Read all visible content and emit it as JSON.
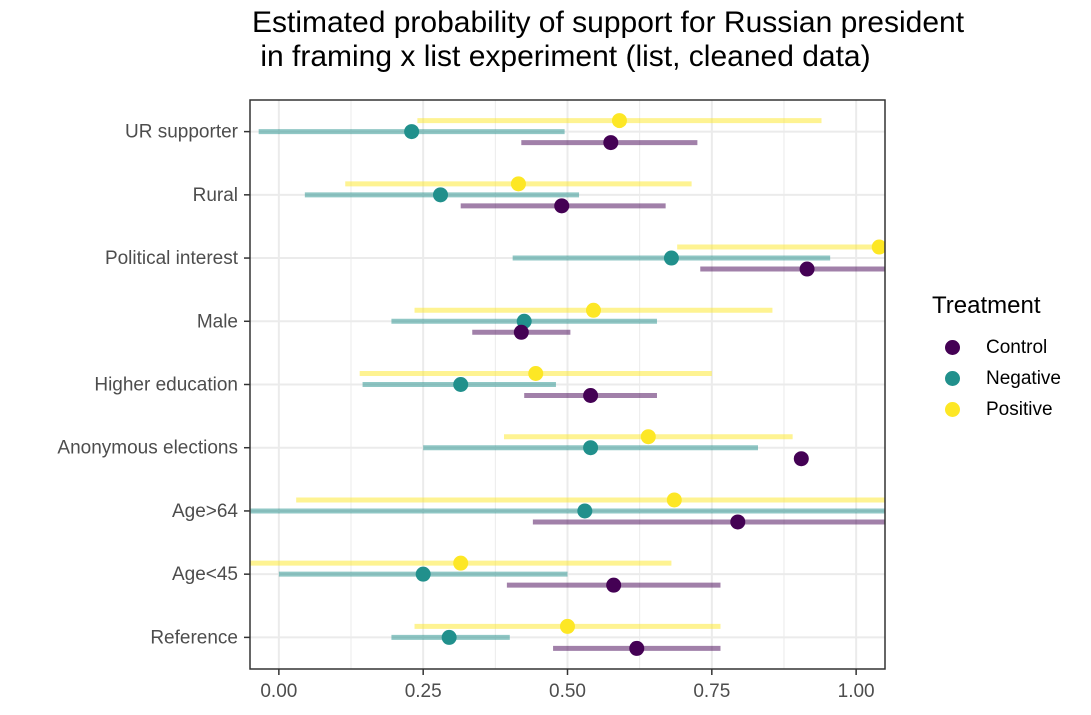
{
  "chart_data": {
    "type": "scatter",
    "title": "Estimated probability of support for Russian president\n in framing x list experiment (list, cleaned data)",
    "xlabel": "",
    "ylabel": "",
    "xlim": [
      -0.05,
      1.05
    ],
    "grid": true,
    "x_ticks": [
      "0.00",
      "0.25",
      "0.50",
      "0.75",
      "1.00"
    ],
    "x_tick_values": [
      0,
      0.25,
      0.5,
      0.75,
      1.0
    ],
    "categories": [
      "UR supporter",
      "Rural",
      "Political interest",
      "Male",
      "Higher education",
      "Anonymous elections",
      "Age>64",
      "Age<45",
      "Reference"
    ],
    "legend": {
      "title": "Treatment",
      "position": "right"
    },
    "series": [
      {
        "name": "Control",
        "color": "#440154",
        "points": [
          {
            "category": "UR supporter",
            "estimate": 0.575,
            "lower": 0.42,
            "upper": 0.725
          },
          {
            "category": "Rural",
            "estimate": 0.49,
            "lower": 0.315,
            "upper": 0.67
          },
          {
            "category": "Political interest",
            "estimate": 0.915,
            "lower": 0.73,
            "upper": 1.05
          },
          {
            "category": "Male",
            "estimate": 0.42,
            "lower": 0.335,
            "upper": 0.505
          },
          {
            "category": "Higher education",
            "estimate": 0.54,
            "lower": 0.425,
            "upper": 0.655
          },
          {
            "category": "Anonymous elections",
            "estimate": 0.905,
            "lower": null,
            "upper": null
          },
          {
            "category": "Age>64",
            "estimate": 0.795,
            "lower": 0.44,
            "upper": 1.05
          },
          {
            "category": "Age<45",
            "estimate": 0.58,
            "lower": 0.395,
            "upper": 0.765
          },
          {
            "category": "Reference",
            "estimate": 0.62,
            "lower": 0.475,
            "upper": 0.765
          }
        ]
      },
      {
        "name": "Negative",
        "color": "#21908C",
        "points": [
          {
            "category": "UR supporter",
            "estimate": 0.23,
            "lower": -0.035,
            "upper": 0.495
          },
          {
            "category": "Rural",
            "estimate": 0.28,
            "lower": 0.045,
            "upper": 0.52
          },
          {
            "category": "Political interest",
            "estimate": 0.68,
            "lower": 0.405,
            "upper": 0.955
          },
          {
            "category": "Male",
            "estimate": 0.425,
            "lower": 0.195,
            "upper": 0.655
          },
          {
            "category": "Higher education",
            "estimate": 0.315,
            "lower": 0.145,
            "upper": 0.48
          },
          {
            "category": "Anonymous elections",
            "estimate": 0.54,
            "lower": 0.25,
            "upper": 0.83
          },
          {
            "category": "Age>64",
            "estimate": 0.53,
            "lower": -0.05,
            "upper": 1.05
          },
          {
            "category": "Age<45",
            "estimate": 0.25,
            "lower": 0.0,
            "upper": 0.5
          },
          {
            "category": "Reference",
            "estimate": 0.295,
            "lower": 0.195,
            "upper": 0.4
          }
        ]
      },
      {
        "name": "Positive",
        "color": "#FDE725",
        "points": [
          {
            "category": "UR supporter",
            "estimate": 0.59,
            "lower": 0.24,
            "upper": 0.94
          },
          {
            "category": "Rural",
            "estimate": 0.415,
            "lower": 0.115,
            "upper": 0.715
          },
          {
            "category": "Political interest",
            "estimate": 1.04,
            "lower": 0.69,
            "upper": 1.05
          },
          {
            "category": "Male",
            "estimate": 0.545,
            "lower": 0.235,
            "upper": 0.855
          },
          {
            "category": "Higher education",
            "estimate": 0.445,
            "lower": 0.14,
            "upper": 0.75
          },
          {
            "category": "Anonymous elections",
            "estimate": 0.64,
            "lower": 0.39,
            "upper": 0.89
          },
          {
            "category": "Age>64",
            "estimate": 0.685,
            "lower": 0.03,
            "upper": 1.05
          },
          {
            "category": "Age<45",
            "estimate": 0.315,
            "lower": -0.05,
            "upper": 0.68
          },
          {
            "category": "Reference",
            "estimate": 0.5,
            "lower": 0.235,
            "upper": 0.765
          }
        ]
      }
    ]
  }
}
